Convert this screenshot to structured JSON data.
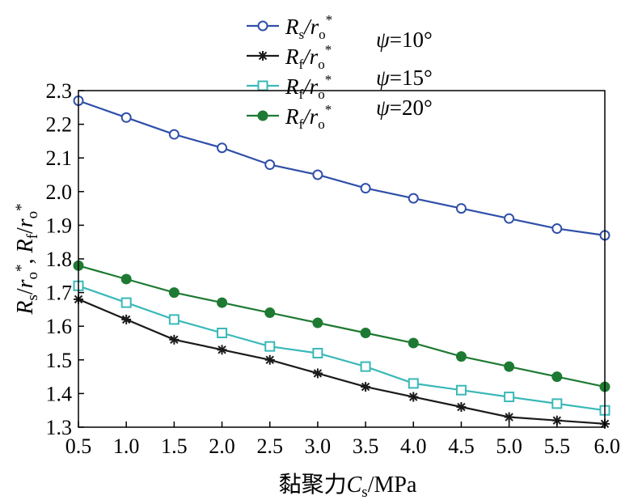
{
  "chart_data": {
    "type": "line",
    "xlabel": "黏聚力Cs/MPa",
    "ylabel": "Rs/ro*, Rf/ro*",
    "x": [
      0.5,
      1.0,
      1.5,
      2.0,
      2.5,
      3.0,
      3.5,
      4.0,
      4.5,
      5.0,
      5.5,
      6.0
    ],
    "x_tick_labels": [
      "0.5",
      "1.0",
      "1.5",
      "2.0",
      "2.5",
      "3.0",
      "3.5",
      "4.0",
      "4.5",
      "5.0",
      "5.5",
      "6.0"
    ],
    "y_tick_labels": [
      "1.3",
      "1.4",
      "1.5",
      "1.6",
      "1.7",
      "1.8",
      "1.9",
      "2.0",
      "2.1",
      "2.2",
      "2.3"
    ],
    "xlim": [
      0.5,
      6.0
    ],
    "ylim": [
      1.3,
      2.3
    ],
    "grid": false,
    "legend_position": "top",
    "series": [
      {
        "name": "Rs/ro*",
        "color": "#2f4fa8",
        "marker": "open-circle",
        "values": [
          2.27,
          2.22,
          2.17,
          2.13,
          2.08,
          2.05,
          2.01,
          1.98,
          1.95,
          1.92,
          1.89,
          1.87
        ]
      },
      {
        "name": "Rf/ro*",
        "color": "#1a1a1a",
        "marker": "asterisk",
        "values": [
          1.68,
          1.62,
          1.56,
          1.53,
          1.5,
          1.46,
          1.42,
          1.39,
          1.36,
          1.33,
          1.32,
          1.31
        ]
      },
      {
        "name": "Rf/ro*",
        "color": "#3ab8b8",
        "marker": "open-square",
        "values": [
          1.72,
          1.67,
          1.62,
          1.58,
          1.54,
          1.52,
          1.48,
          1.43,
          1.41,
          1.39,
          1.37,
          1.35
        ]
      },
      {
        "name": "Rf/ro*",
        "color": "#1e7a32",
        "marker": "filled-circle",
        "values": [
          1.78,
          1.74,
          1.7,
          1.67,
          1.64,
          1.61,
          1.58,
          1.55,
          1.51,
          1.48,
          1.45,
          1.42
        ]
      }
    ],
    "annotations": [
      "ψ=10°",
      "ψ=15°",
      "ψ=20°"
    ]
  }
}
